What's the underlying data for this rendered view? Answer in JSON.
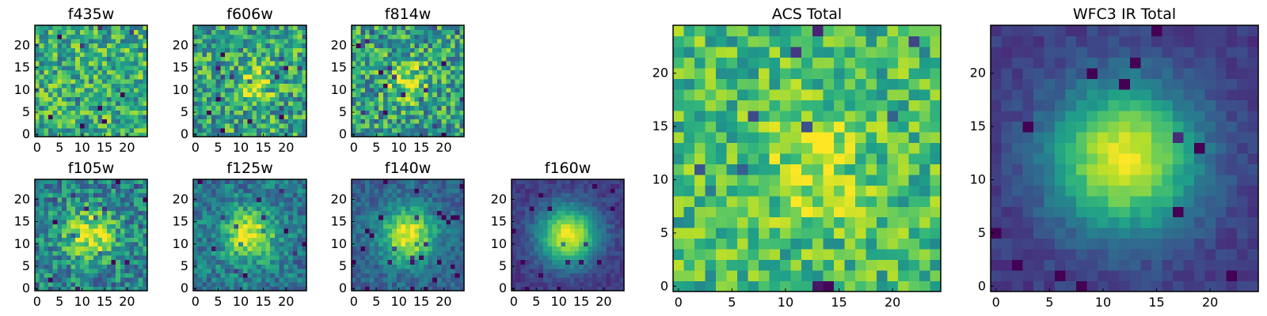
{
  "figure": {
    "colormap": "viridis",
    "colormap_stops": [
      "#440154",
      "#482878",
      "#3e4989",
      "#31688e",
      "#26828e",
      "#1f9e89",
      "#35b779",
      "#6ece58",
      "#b5de2b",
      "#fde725"
    ],
    "axis_color": "#000000"
  },
  "chart_data": [
    {
      "type": "heatmap",
      "title": "f435w",
      "xlabel": "",
      "ylabel": "",
      "grid_size": [
        25,
        25
      ],
      "xlim": [
        0,
        24
      ],
      "ylim": [
        0,
        24
      ],
      "xticks": [
        0,
        5,
        10,
        15,
        20
      ],
      "yticks": [
        0,
        5,
        10,
        15,
        20
      ],
      "grid": false,
      "pattern": "noise",
      "center": [
        12,
        11
      ],
      "peak_value": 0.62,
      "noise_level": 0.28,
      "background": 0.62,
      "sigma": 4.0,
      "seed": 11
    },
    {
      "type": "heatmap",
      "title": "f606w",
      "xlabel": "",
      "ylabel": "",
      "grid_size": [
        25,
        25
      ],
      "xlim": [
        0,
        24
      ],
      "ylim": [
        0,
        24
      ],
      "xticks": [
        0,
        5,
        10,
        15,
        20
      ],
      "yticks": [
        0,
        5,
        10,
        15,
        20
      ],
      "grid": false,
      "pattern": "weak-source",
      "center": [
        13,
        11
      ],
      "peak_value": 0.85,
      "noise_level": 0.3,
      "background": 0.58,
      "sigma": 3.0,
      "seed": 23
    },
    {
      "type": "heatmap",
      "title": "f814w",
      "xlabel": "",
      "ylabel": "",
      "grid_size": [
        25,
        25
      ],
      "xlim": [
        0,
        24
      ],
      "ylim": [
        0,
        24
      ],
      "xticks": [
        0,
        5,
        10,
        15,
        20
      ],
      "yticks": [
        0,
        5,
        10,
        15,
        20
      ],
      "grid": false,
      "pattern": "weak-source",
      "center": [
        12,
        12
      ],
      "peak_value": 0.88,
      "noise_level": 0.3,
      "background": 0.56,
      "sigma": 3.2,
      "seed": 37
    },
    {
      "type": "heatmap",
      "title": "f105w",
      "xlabel": "",
      "ylabel": "",
      "grid_size": [
        25,
        25
      ],
      "xlim": [
        0,
        24
      ],
      "ylim": [
        0,
        24
      ],
      "xticks": [
        0,
        5,
        10,
        15,
        20
      ],
      "yticks": [
        0,
        5,
        10,
        15,
        20
      ],
      "grid": false,
      "pattern": "source",
      "center": [
        12,
        12
      ],
      "peak_value": 0.95,
      "noise_level": 0.24,
      "background": 0.45,
      "sigma": 4.0,
      "seed": 41
    },
    {
      "type": "heatmap",
      "title": "f125w",
      "xlabel": "",
      "ylabel": "",
      "grid_size": [
        25,
        25
      ],
      "xlim": [
        0,
        24
      ],
      "ylim": [
        0,
        24
      ],
      "xticks": [
        0,
        5,
        10,
        15,
        20
      ],
      "yticks": [
        0,
        5,
        10,
        15,
        20
      ],
      "grid": false,
      "pattern": "source",
      "center": [
        12,
        12
      ],
      "peak_value": 0.97,
      "noise_level": 0.18,
      "background": 0.4,
      "sigma": 4.0,
      "seed": 53
    },
    {
      "type": "heatmap",
      "title": "f140w",
      "xlabel": "",
      "ylabel": "",
      "grid_size": [
        25,
        25
      ],
      "xlim": [
        0,
        24
      ],
      "ylim": [
        0,
        24
      ],
      "xticks": [
        0,
        5,
        10,
        15,
        20
      ],
      "yticks": [
        0,
        5,
        10,
        15,
        20
      ],
      "grid": false,
      "pattern": "source",
      "center": [
        12,
        12
      ],
      "peak_value": 0.98,
      "noise_level": 0.12,
      "background": 0.32,
      "sigma": 4.2,
      "seed": 67
    },
    {
      "type": "heatmap",
      "title": "f160w",
      "xlabel": "",
      "ylabel": "",
      "grid_size": [
        25,
        25
      ],
      "xlim": [
        0,
        24
      ],
      "ylim": [
        0,
        24
      ],
      "xticks": [
        0,
        5,
        10,
        15,
        20
      ],
      "yticks": [
        0,
        5,
        10,
        15,
        20
      ],
      "grid": false,
      "pattern": "source",
      "center": [
        12,
        12
      ],
      "peak_value": 0.98,
      "noise_level": 0.07,
      "background": 0.17,
      "sigma": 4.6,
      "seed": 79
    },
    {
      "type": "heatmap",
      "title": "ACS Total",
      "xlabel": "",
      "ylabel": "",
      "grid_size": [
        25,
        25
      ],
      "xlim": [
        0,
        24
      ],
      "ylim": [
        0,
        24
      ],
      "xticks": [
        0,
        5,
        10,
        15,
        20
      ],
      "yticks": [
        0,
        5,
        10,
        15,
        20
      ],
      "grid": false,
      "pattern": "noise",
      "center": [
        13,
        11
      ],
      "peak_value": 0.92,
      "noise_level": 0.22,
      "background": 0.68,
      "sigma": 3.4,
      "seed": 97
    },
    {
      "type": "heatmap",
      "title": "WFC3 IR Total",
      "xlabel": "",
      "ylabel": "",
      "grid_size": [
        25,
        25
      ],
      "xlim": [
        0,
        24
      ],
      "ylim": [
        0,
        24
      ],
      "xticks": [
        0,
        5,
        10,
        15,
        20
      ],
      "yticks": [
        0,
        5,
        10,
        15,
        20
      ],
      "grid": false,
      "pattern": "source",
      "center": [
        12,
        12
      ],
      "peak_value": 0.98,
      "noise_level": 0.06,
      "background": 0.17,
      "sigma": 4.8,
      "seed": 113
    }
  ]
}
